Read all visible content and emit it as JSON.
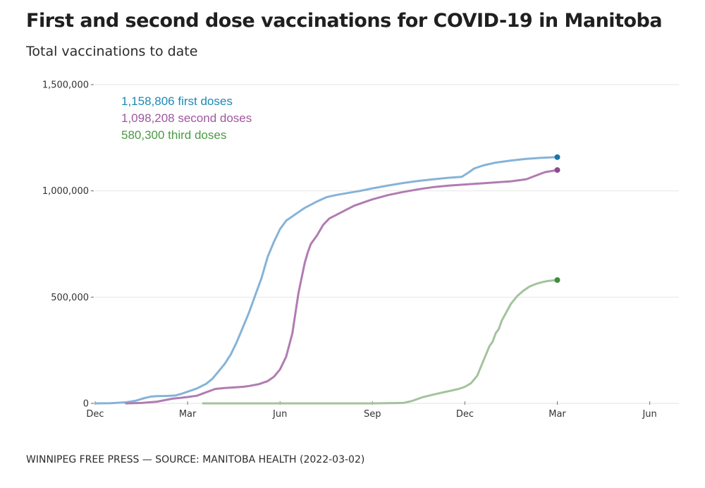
{
  "header": {
    "title": "First and second dose vaccinations for COVID-19 in Manitoba",
    "subtitle": "Total vaccinations to date"
  },
  "footer": {
    "source": "WINNIPEG FREE PRESS — SOURCE: MANITOBA HEALTH (2022-03-02)"
  },
  "chart_data": {
    "type": "line",
    "title": "First and second dose vaccinations for COVID-19 in Manitoba",
    "subtitle": "Total vaccinations to date",
    "xlabel": "",
    "ylabel": "",
    "x_unit": "months since Dec 2020",
    "xlim": [
      0,
      19.5
    ],
    "ylim": [
      0,
      1500000
    ],
    "grid": true,
    "legend_placement": "top-left",
    "x_ticks": [
      {
        "value": 0,
        "label": "Dec"
      },
      {
        "value": 3,
        "label": "Mar"
      },
      {
        "value": 6,
        "label": "Jun"
      },
      {
        "value": 9,
        "label": "Sep"
      },
      {
        "value": 12,
        "label": "Dec"
      },
      {
        "value": 15,
        "label": "Mar"
      },
      {
        "value": 18,
        "label": "Jun"
      }
    ],
    "y_ticks": [
      {
        "value": 0,
        "label": "0"
      },
      {
        "value": 500000,
        "label": "500,000"
      },
      {
        "value": 1000000,
        "label": "1,000,000"
      },
      {
        "value": 1500000,
        "label": "1,500,000"
      }
    ],
    "series": [
      {
        "name": "first doses",
        "legend": "1,158,806 first doses",
        "final_value": 1158806,
        "line_color": "#86b3d8",
        "label_color": "#1f88b4",
        "end_dot_color": "#1a75a8",
        "x": [
          0,
          0.5,
          1,
          1.3,
          1.6,
          1.8,
          2.0,
          2.3,
          2.6,
          2.8,
          3.0,
          3.3,
          3.6,
          3.8,
          4.0,
          4.2,
          4.4,
          4.6,
          4.8,
          5.0,
          5.2,
          5.4,
          5.6,
          5.8,
          6.0,
          6.2,
          6.4,
          6.6,
          6.8,
          7.0,
          7.2,
          7.5,
          7.8,
          8.2,
          8.6,
          9.0,
          9.5,
          10.0,
          10.5,
          11.0,
          11.5,
          11.9,
          12.1,
          12.3,
          12.6,
          13.0,
          13.5,
          14.0,
          14.5,
          15.0
        ],
        "y": [
          0,
          1000,
          5000,
          12000,
          25000,
          32000,
          34000,
          35000,
          37000,
          45000,
          55000,
          70000,
          92000,
          115000,
          150000,
          185000,
          230000,
          290000,
          360000,
          430000,
          510000,
          590000,
          690000,
          760000,
          820000,
          860000,
          880000,
          900000,
          920000,
          935000,
          950000,
          970000,
          980000,
          990000,
          1000000,
          1012000,
          1025000,
          1037000,
          1047000,
          1055000,
          1062000,
          1066000,
          1085000,
          1105000,
          1120000,
          1133000,
          1143000,
          1151000,
          1156000,
          1158806
        ]
      },
      {
        "name": "second doses",
        "legend": "1,098,208 second doses",
        "final_value": 1098208,
        "line_color": "#b07cb2",
        "label_color": "#a0579f",
        "end_dot_color": "#8e4a8d",
        "x": [
          1,
          1.5,
          2.0,
          2.5,
          3.0,
          3.3,
          3.6,
          3.9,
          4.2,
          4.5,
          4.8,
          5.0,
          5.3,
          5.6,
          5.8,
          6.0,
          6.2,
          6.4,
          6.6,
          6.8,
          6.9,
          7.0,
          7.2,
          7.4,
          7.6,
          7.8,
          8.0,
          8.2,
          8.4,
          8.7,
          9.0,
          9.5,
          10.0,
          10.5,
          11.0,
          11.5,
          12.0,
          12.5,
          13.0,
          13.5,
          14.0,
          14.3,
          14.6,
          15.0
        ],
        "y": [
          0,
          2000,
          8000,
          22000,
          30000,
          36000,
          52000,
          68000,
          72000,
          75000,
          78000,
          82000,
          90000,
          105000,
          125000,
          160000,
          220000,
          330000,
          520000,
          660000,
          710000,
          750000,
          790000,
          840000,
          870000,
          885000,
          900000,
          915000,
          930000,
          945000,
          960000,
          980000,
          995000,
          1008000,
          1018000,
          1025000,
          1030000,
          1035000,
          1040000,
          1045000,
          1055000,
          1072000,
          1088000,
          1098208
        ]
      },
      {
        "name": "third doses",
        "legend": "580,300 third doses",
        "final_value": 580300,
        "line_color": "#a3c39d",
        "label_color": "#4a9a44",
        "end_dot_color": "#3f8e3c",
        "x": [
          3.5,
          5,
          7,
          9,
          10.0,
          10.3,
          10.6,
          11.0,
          11.4,
          11.8,
          12.0,
          12.2,
          12.4,
          12.6,
          12.8,
          12.9,
          13.0,
          13.1,
          13.2,
          13.35,
          13.5,
          13.7,
          13.9,
          14.1,
          14.3,
          14.5,
          14.7,
          15.0
        ],
        "y": [
          0,
          0,
          0,
          0,
          2000,
          12000,
          28000,
          42000,
          55000,
          68000,
          78000,
          95000,
          130000,
          200000,
          270000,
          290000,
          330000,
          350000,
          390000,
          430000,
          470000,
          505000,
          530000,
          550000,
          562000,
          570000,
          576000,
          580300
        ]
      }
    ]
  }
}
